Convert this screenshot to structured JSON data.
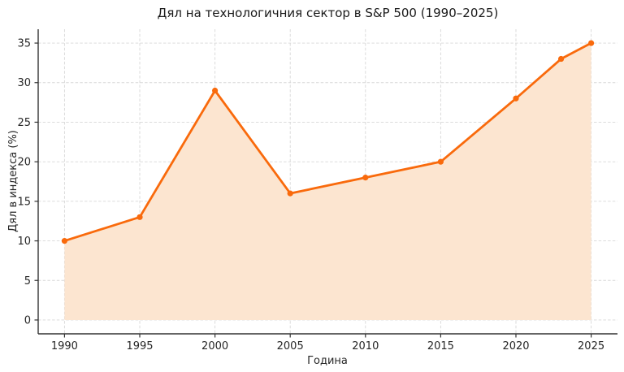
{
  "chart_data": {
    "type": "area",
    "title": "Дял на технологичния сектор в S&P 500 (1990–2025)",
    "xlabel": "Година",
    "ylabel": "Дял в индекса (%)",
    "x": [
      1990,
      1995,
      2000,
      2005,
      2010,
      2015,
      2020,
      2023,
      2025
    ],
    "values": [
      10,
      13,
      29,
      16,
      18,
      20,
      28,
      33,
      35
    ],
    "xticks": [
      1990,
      1995,
      2000,
      2005,
      2010,
      2015,
      2020,
      2025
    ],
    "yticks": [
      0,
      5,
      10,
      15,
      20,
      25,
      30,
      35
    ],
    "xlim": [
      1988.25,
      2026.75
    ],
    "ylim": [
      -1.75,
      36.75
    ],
    "baseline": 0,
    "grid": true,
    "grid_style": "dashed",
    "legend_position": "none",
    "colors": {
      "line": "#f96a0c",
      "marker": "#f96a0c",
      "fill": "#fce5d0",
      "grid": "#d7d7d7",
      "spine": "#333333",
      "text": "#262626",
      "background": "#ffffff"
    }
  }
}
